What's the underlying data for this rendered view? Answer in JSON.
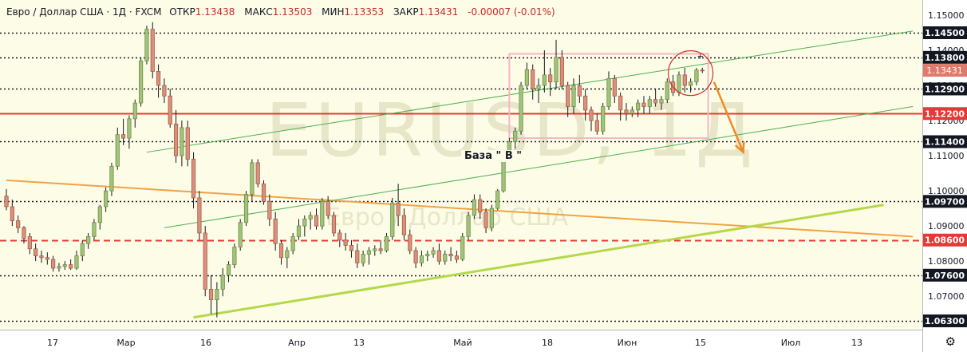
{
  "header": {
    "symbol": "Евро / Доллар США · 1Д · FXCM",
    "open_label": "ОТКР",
    "open_value": "1.13438",
    "high_label": "МАКС",
    "high_value": "1.13503",
    "low_label": "МИН",
    "low_value": "1.13353",
    "close_label": "ЗАКР",
    "close_value": "1.13431",
    "change": "-0.00007 (-0.01%)"
  },
  "watermark": {
    "main": "EURUSD, 1Д",
    "sub": "Евро / Доллар США"
  },
  "annotation": {
    "text": "База  \" В \""
  },
  "settings_icon": "gear-icon",
  "colors": {
    "background": "#fdfde7",
    "up": "#a3c27a",
    "down": "#d9907d",
    "red_line": "#e53935",
    "orange_line": "#f5a142",
    "lime_line": "#b4d84a",
    "channel": "#4caf50",
    "rectangle": "#f4b6c2",
    "arrow": "#f08a24"
  },
  "chart_data": {
    "type": "candlestick",
    "ylim": [
      1.063,
      1.1525
    ],
    "y_ticks": [
      "1.15000",
      "1.14000",
      "1.13000",
      "1.12000",
      "1.11000",
      "1.10000",
      "1.09000",
      "1.08000",
      "1.07000"
    ],
    "x_ticks": [
      "17",
      "Мар",
      "16",
      "Апр",
      "13",
      "Май",
      "18",
      "Июн",
      "15",
      "Июл",
      "13"
    ],
    "last_price": "1.13431",
    "levels": [
      {
        "value": "1.14500",
        "style": "dotted"
      },
      {
        "value": "1.13800",
        "style": "dotted"
      },
      {
        "value": "1.12900",
        "style": "dotted"
      },
      {
        "value": "1.12200",
        "style": "solid-red"
      },
      {
        "value": "1.11400",
        "style": "dotted"
      },
      {
        "value": "1.09700",
        "style": "dotted"
      },
      {
        "value": "1.08600",
        "style": "dashed-red"
      },
      {
        "value": "1.07600",
        "style": "dotted"
      },
      {
        "value": "1.06300",
        "style": "dotted"
      }
    ],
    "ohlc": [
      [
        1.0985,
        1.1005,
        1.0945,
        1.0955
      ],
      [
        1.0955,
        1.0975,
        1.09,
        1.0915
      ],
      [
        1.0915,
        1.093,
        1.088,
        1.0895
      ],
      [
        1.0895,
        1.09,
        1.085,
        1.0865
      ],
      [
        1.087,
        1.088,
        1.082,
        1.0835
      ],
      [
        1.0835,
        1.085,
        1.08,
        1.0815
      ],
      [
        1.0815,
        1.083,
        1.0795,
        1.081
      ],
      [
        1.081,
        1.0825,
        1.079,
        1.0805
      ],
      [
        1.0805,
        1.0815,
        1.077,
        1.078
      ],
      [
        1.078,
        1.0795,
        1.077,
        1.0785
      ],
      [
        1.0785,
        1.08,
        1.0775,
        1.079
      ],
      [
        1.079,
        1.0805,
        1.0775,
        1.078
      ],
      [
        1.078,
        1.083,
        1.0775,
        1.0815
      ],
      [
        1.0815,
        1.086,
        1.08,
        1.085
      ],
      [
        1.085,
        1.088,
        1.0835,
        1.087
      ],
      [
        1.087,
        1.092,
        1.086,
        1.091
      ],
      [
        1.091,
        1.096,
        1.089,
        1.0955
      ],
      [
        1.0955,
        1.101,
        1.094,
        1.1
      ],
      [
        1.1,
        1.108,
        1.0985,
        1.107
      ],
      [
        1.107,
        1.118,
        1.106,
        1.116
      ],
      [
        1.116,
        1.1205,
        1.113,
        1.115
      ],
      [
        1.115,
        1.1215,
        1.112,
        1.1205
      ],
      [
        1.1205,
        1.126,
        1.118,
        1.125
      ],
      [
        1.125,
        1.138,
        1.124,
        1.137
      ],
      [
        1.137,
        1.147,
        1.136,
        1.146
      ],
      [
        1.146,
        1.148,
        1.132,
        1.134
      ],
      [
        1.134,
        1.136,
        1.1265,
        1.13
      ],
      [
        1.13,
        1.132,
        1.125,
        1.127
      ],
      [
        1.127,
        1.129,
        1.118,
        1.119
      ],
      [
        1.119,
        1.123,
        1.108,
        1.11
      ],
      [
        1.11,
        1.12,
        1.107,
        1.118
      ],
      [
        1.118,
        1.12,
        1.107,
        1.109
      ],
      [
        1.109,
        1.111,
        1.095,
        1.098
      ],
      [
        1.098,
        1.1,
        1.086,
        1.088
      ],
      [
        1.088,
        1.09,
        1.07,
        1.072
      ],
      [
        1.072,
        1.076,
        1.065,
        1.069
      ],
      [
        1.069,
        1.074,
        1.064,
        1.072
      ],
      [
        1.072,
        1.078,
        1.07,
        1.076
      ],
      [
        1.076,
        1.08,
        1.074,
        1.079
      ],
      [
        1.079,
        1.085,
        1.078,
        1.084
      ],
      [
        1.084,
        1.092,
        1.083,
        1.091
      ],
      [
        1.091,
        1.1,
        1.09,
        1.099
      ],
      [
        1.099,
        1.109,
        1.097,
        1.108
      ],
      [
        1.108,
        1.109,
        1.101,
        1.102
      ],
      [
        1.102,
        1.103,
        1.096,
        1.097
      ],
      [
        1.097,
        1.099,
        1.09,
        1.092
      ],
      [
        1.092,
        1.094,
        1.083,
        1.085
      ],
      [
        1.085,
        1.086,
        1.079,
        1.081
      ],
      [
        1.081,
        1.084,
        1.078,
        1.083
      ],
      [
        1.083,
        1.088,
        1.082,
        1.087
      ],
      [
        1.087,
        1.092,
        1.086,
        1.09
      ],
      [
        1.09,
        1.093,
        1.087,
        1.092
      ],
      [
        1.092,
        1.094,
        1.089,
        1.093
      ],
      [
        1.093,
        1.095,
        1.089,
        1.09
      ],
      [
        1.09,
        1.098,
        1.089,
        1.097
      ],
      [
        1.097,
        1.0985,
        1.092,
        1.093
      ],
      [
        1.093,
        1.094,
        1.087,
        1.088
      ],
      [
        1.088,
        1.089,
        1.084,
        1.086
      ],
      [
        1.086,
        1.088,
        1.083,
        1.0845
      ],
      [
        1.0845,
        1.086,
        1.081,
        1.083
      ],
      [
        1.083,
        1.085,
        1.078,
        1.0795
      ],
      [
        1.0795,
        1.083,
        1.0785,
        1.082
      ],
      [
        1.082,
        1.084,
        1.079,
        1.083
      ],
      [
        1.083,
        1.0845,
        1.0815,
        1.0835
      ],
      [
        1.0835,
        1.086,
        1.082,
        1.083
      ],
      [
        1.083,
        1.088,
        1.0825,
        1.087
      ],
      [
        1.087,
        1.098,
        1.086,
        1.0965
      ],
      [
        1.0965,
        1.102,
        1.09,
        1.093
      ],
      [
        1.093,
        1.095,
        1.086,
        1.0875
      ],
      [
        1.0875,
        1.089,
        1.082,
        1.083
      ],
      [
        1.083,
        1.084,
        1.078,
        1.0795
      ],
      [
        1.0795,
        1.083,
        1.0785,
        1.0815
      ],
      [
        1.0815,
        1.083,
        1.08,
        1.082
      ],
      [
        1.082,
        1.084,
        1.081,
        1.083
      ],
      [
        1.083,
        1.085,
        1.079,
        1.08
      ],
      [
        1.08,
        1.083,
        1.079,
        1.082
      ],
      [
        1.082,
        1.084,
        1.08,
        1.0815
      ],
      [
        1.0815,
        1.083,
        1.0795,
        1.0805
      ],
      [
        1.0805,
        1.088,
        1.08,
        1.087
      ],
      [
        1.087,
        1.094,
        1.086,
        1.093
      ],
      [
        1.093,
        1.099,
        1.092,
        1.0975
      ],
      [
        1.0975,
        1.099,
        1.092,
        1.094
      ],
      [
        1.094,
        1.095,
        1.088,
        1.0895
      ],
      [
        1.0895,
        1.096,
        1.0885,
        1.095
      ],
      [
        1.095,
        1.1005,
        1.0945,
        1.1
      ],
      [
        1.1,
        1.111,
        1.0995,
        1.11
      ],
      [
        1.11,
        1.115,
        1.109,
        1.114
      ],
      [
        1.114,
        1.118,
        1.112,
        1.117
      ],
      [
        1.117,
        1.131,
        1.116,
        1.13
      ],
      [
        1.13,
        1.1365,
        1.129,
        1.1345
      ],
      [
        1.1345,
        1.136,
        1.126,
        1.129
      ],
      [
        1.129,
        1.132,
        1.125,
        1.13
      ],
      [
        1.13,
        1.14,
        1.128,
        1.133
      ],
      [
        1.133,
        1.135,
        1.127,
        1.131
      ],
      [
        1.131,
        1.143,
        1.129,
        1.138
      ],
      [
        1.138,
        1.14,
        1.129,
        1.13
      ],
      [
        1.13,
        1.131,
        1.121,
        1.124
      ],
      [
        1.124,
        1.132,
        1.122,
        1.13
      ],
      [
        1.13,
        1.133,
        1.125,
        1.127
      ],
      [
        1.127,
        1.129,
        1.12,
        1.123
      ],
      [
        1.123,
        1.124,
        1.117,
        1.12
      ],
      [
        1.12,
        1.122,
        1.116,
        1.117
      ],
      [
        1.117,
        1.125,
        1.116,
        1.124
      ],
      [
        1.124,
        1.134,
        1.123,
        1.132
      ],
      [
        1.132,
        1.133,
        1.125,
        1.127
      ],
      [
        1.127,
        1.128,
        1.12,
        1.123
      ],
      [
        1.123,
        1.125,
        1.12,
        1.122
      ],
      [
        1.122,
        1.124,
        1.121,
        1.123
      ],
      [
        1.123,
        1.126,
        1.121,
        1.125
      ],
      [
        1.125,
        1.127,
        1.122,
        1.124
      ],
      [
        1.124,
        1.127,
        1.122,
        1.126
      ],
      [
        1.126,
        1.129,
        1.124,
        1.125
      ],
      [
        1.125,
        1.127,
        1.123,
        1.126
      ],
      [
        1.126,
        1.132,
        1.125,
        1.131
      ],
      [
        1.131,
        1.133,
        1.127,
        1.128
      ],
      [
        1.128,
        1.134,
        1.127,
        1.133
      ],
      [
        1.133,
        1.135,
        1.128,
        1.13
      ],
      [
        1.13,
        1.132,
        1.128,
        1.131
      ],
      [
        1.131,
        1.135,
        1.13,
        1.1344
      ],
      [
        1.13438,
        1.13503,
        1.13353,
        1.13431
      ]
    ],
    "lines": [
      {
        "name": "orange-trend",
        "from": [
          0,
          1.103
        ],
        "to": [
          155,
          1.087
        ]
      },
      {
        "name": "lime-trend",
        "from": [
          32,
          1.064
        ],
        "to": [
          150,
          1.096
        ]
      },
      {
        "name": "channel-upper",
        "from": [
          24,
          1.111
        ],
        "to": [
          155,
          1.1455
        ]
      },
      {
        "name": "channel-lower",
        "from": [
          27,
          1.0895
        ],
        "to": [
          155,
          1.124
        ]
      }
    ],
    "rectangle": {
      "from": [
        86,
        1.115
      ],
      "to": [
        120,
        1.139
      ]
    },
    "circle": {
      "center": [
        117,
        1.1335
      ],
      "r": 1.0
    },
    "arrow": {
      "from": [
        121,
        1.131
      ],
      "to": [
        126,
        1.111
      ]
    }
  }
}
